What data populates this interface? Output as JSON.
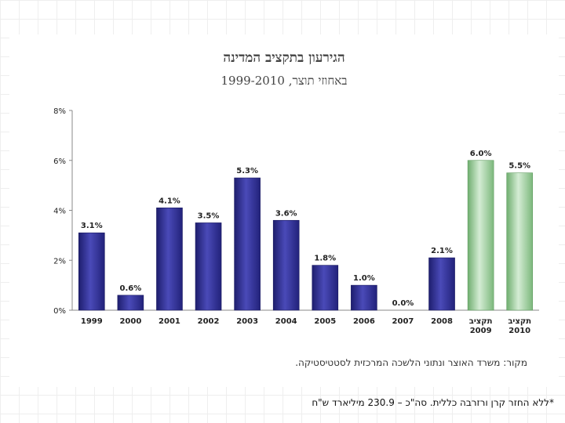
{
  "chart_data": {
    "type": "bar",
    "title": "הגירעון בתקציב המדינה",
    "subtitle": "באחוזי תוצר, 1999-2010",
    "categories": [
      "1999",
      "2000",
      "2001",
      "2002",
      "2003",
      "2004",
      "2005",
      "2006",
      "2007",
      "2008",
      "תקציב 2009",
      "תקציב 2010"
    ],
    "values": [
      3.1,
      0.6,
      4.1,
      3.5,
      5.3,
      3.6,
      1.8,
      1.0,
      0.0,
      2.1,
      6.0,
      5.5
    ],
    "value_labels": [
      "3.1%",
      "0.6%",
      "4.1%",
      "3.5%",
      "5.3%",
      "3.6%",
      "1.8%",
      "1.0%",
      "0.0%",
      "2.1%",
      "6.0%",
      "5.5%"
    ],
    "highlight": [
      false,
      false,
      false,
      false,
      false,
      false,
      false,
      false,
      false,
      false,
      true,
      true
    ],
    "y_ticks": [
      0,
      2,
      4,
      6,
      8
    ],
    "y_tick_labels": [
      "0%",
      "2%",
      "4%",
      "6%",
      "8%"
    ],
    "ylim": [
      0,
      8
    ],
    "xlabel": "",
    "ylabel": "",
    "grid": false
  },
  "colors": {
    "bar": "#34349a",
    "bar_highlight": "#a6d3a6"
  },
  "source": "מקור: משרד האוצר ונתוני הלשכה המרכזית לסטטיסטיקה.",
  "footnote": "*ללא החזר קרן ורזרבה כללית. סה\"כ – 230.9 מיליארד ש\"ח"
}
